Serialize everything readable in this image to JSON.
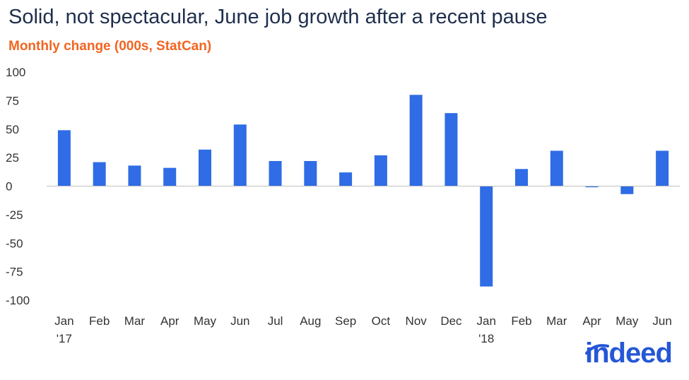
{
  "title": "Solid, not spectacular, June job growth after a recent pause",
  "subtitle": "Monthly change (000s, StatCan)",
  "logo_text": "indeed",
  "colors": {
    "bar": "#2f6ce5",
    "subtitle": "#f26522",
    "title": "#1f2f4d",
    "logo": "#2557d6"
  },
  "chart_data": {
    "type": "bar",
    "title": "Solid, not spectacular, June job growth after a recent pause",
    "subtitle": "Monthly change (000s, StatCan)",
    "categories": [
      "Jan",
      "Feb",
      "Mar",
      "Apr",
      "May",
      "Jun",
      "Jul",
      "Aug",
      "Sep",
      "Oct",
      "Nov",
      "Dec",
      "Jan",
      "Feb",
      "Mar",
      "Apr",
      "May",
      "Jun"
    ],
    "year_labels": [
      {
        "category_index": 0,
        "label": "'17"
      },
      {
        "category_index": 12,
        "label": "'18"
      }
    ],
    "values": [
      49,
      21,
      18,
      16,
      32,
      54,
      22,
      22,
      12,
      27,
      80,
      64,
      -88,
      15,
      31,
      -1,
      -7,
      31
    ],
    "ylim": [
      -100,
      100
    ],
    "yticks": [
      100,
      75,
      50,
      25,
      0,
      -25,
      -50,
      -75,
      -100
    ],
    "xlabel": "",
    "ylabel": "",
    "grid": false,
    "legend": "none"
  }
}
